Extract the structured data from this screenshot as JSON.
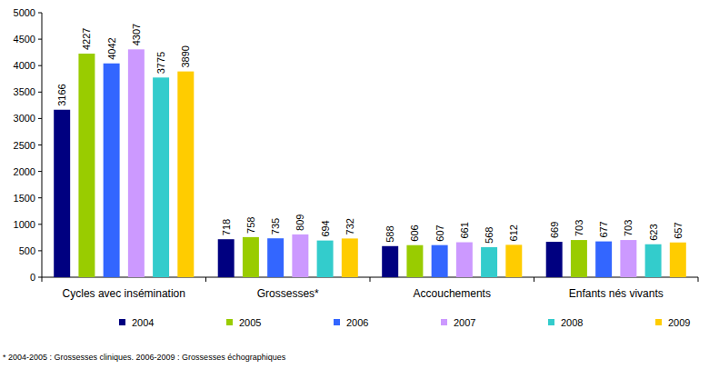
{
  "chart_data": {
    "type": "bar",
    "categories": [
      "Cycles avec insémination",
      "Grossesses*",
      "Accouchements",
      "Enfants nés vivants"
    ],
    "series": [
      {
        "name": "2004",
        "color": "#000080",
        "values": [
          3166,
          718,
          588,
          669
        ]
      },
      {
        "name": "2005",
        "color": "#99cc00",
        "values": [
          4227,
          758,
          606,
          703
        ]
      },
      {
        "name": "2006",
        "color": "#3366ff",
        "values": [
          4042,
          735,
          607,
          677
        ]
      },
      {
        "name": "2007",
        "color": "#cc99ff",
        "values": [
          4307,
          809,
          661,
          703
        ]
      },
      {
        "name": "2008",
        "color": "#33cccc",
        "values": [
          3775,
          694,
          568,
          623
        ]
      },
      {
        "name": "2009",
        "color": "#ffcc00",
        "values": [
          3890,
          732,
          612,
          657
        ]
      }
    ],
    "ylim": [
      0,
      5000
    ],
    "yticks": [
      0,
      500,
      1000,
      1500,
      2000,
      2500,
      3000,
      3500,
      4000,
      4500,
      5000
    ],
    "grid": false,
    "legend": "bottom",
    "data_labels": true,
    "annotations": [
      "* 2004-2005 : Grossesses cliniques. 2006-2009 : Grossesses échographiques"
    ]
  }
}
